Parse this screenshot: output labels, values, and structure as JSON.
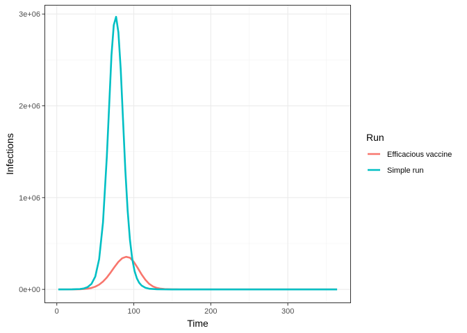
{
  "chart_data": {
    "type": "line",
    "title": "",
    "xlabel": "Time",
    "ylabel": "Infections",
    "xlim": [
      -16,
      382
    ],
    "ylim": [
      -150000,
      3100000
    ],
    "x_ticks": [
      0,
      100,
      200,
      300
    ],
    "x_tick_labels": [
      "0",
      "100",
      "200",
      "300"
    ],
    "x_minor_ticks": [
      50,
      150,
      250,
      350
    ],
    "y_ticks": [
      0,
      1000000,
      2000000,
      3000000
    ],
    "y_tick_labels": [
      "0e+00",
      "1e+06",
      "2e+06",
      "3e+06"
    ],
    "y_minor_ticks": [
      500000,
      1500000,
      2500000
    ],
    "grid": true,
    "legend": {
      "title": "Run",
      "position": "right"
    },
    "series": [
      {
        "name": "Efficacious vaccine",
        "color": "#F8766D",
        "x": [
          2,
          20,
          30,
          40,
          45,
          50,
          55,
          60,
          65,
          70,
          75,
          80,
          85,
          90,
          95,
          100,
          105,
          110,
          115,
          120,
          125,
          130,
          135,
          140,
          150,
          160,
          180,
          200,
          250,
          300,
          364
        ],
        "y": [
          0,
          200,
          1500,
          8000,
          16000,
          30000,
          52000,
          85000,
          130000,
          185000,
          245000,
          300000,
          340000,
          355000,
          345000,
          300000,
          235000,
          165000,
          105000,
          60000,
          32000,
          16000,
          8000,
          4000,
          1000,
          200,
          0,
          0,
          0,
          0,
          0
        ]
      },
      {
        "name": "Simple run",
        "color": "#00BFC4",
        "x": [
          2,
          20,
          30,
          35,
          40,
          45,
          50,
          55,
          60,
          65,
          68,
          71,
          74,
          77,
          80,
          83,
          86,
          89,
          92,
          95,
          98,
          101,
          104,
          107,
          110,
          115,
          120,
          130,
          140,
          150,
          160,
          180,
          200,
          250,
          300,
          364
        ],
        "y": [
          0,
          500,
          4000,
          10000,
          25000,
          60000,
          140000,
          330000,
          730000,
          1450000,
          2000000,
          2550000,
          2880000,
          2970000,
          2800000,
          2400000,
          1850000,
          1300000,
          860000,
          540000,
          330000,
          200000,
          120000,
          72000,
          43000,
          18000,
          7500,
          1300,
          250,
          50,
          10,
          0,
          0,
          0,
          0,
          0
        ]
      }
    ]
  }
}
